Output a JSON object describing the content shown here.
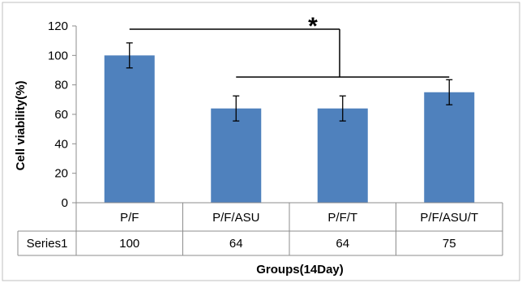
{
  "chart_data": {
    "type": "bar",
    "categories": [
      "P/F",
      "P/F/ASU",
      "P/F/T",
      "P/F/ASU/T"
    ],
    "series": [
      {
        "name": "Series1",
        "values": [
          100,
          64,
          64,
          75
        ],
        "errors": [
          8.5,
          8.5,
          8.5,
          8.5
        ],
        "color": "#4f81bd"
      }
    ],
    "ylabel": "Cell viability(%)",
    "xlabel": "Groups(14Day)",
    "ylim": [
      0,
      120
    ],
    "yticks": [
      0,
      20,
      40,
      60,
      80,
      100,
      120
    ],
    "grid": false,
    "data_table": true,
    "significance": {
      "symbol": "*",
      "from_category": "P/F",
      "to_categories": [
        "P/F/ASU",
        "P/F/ASU/T"
      ]
    }
  }
}
